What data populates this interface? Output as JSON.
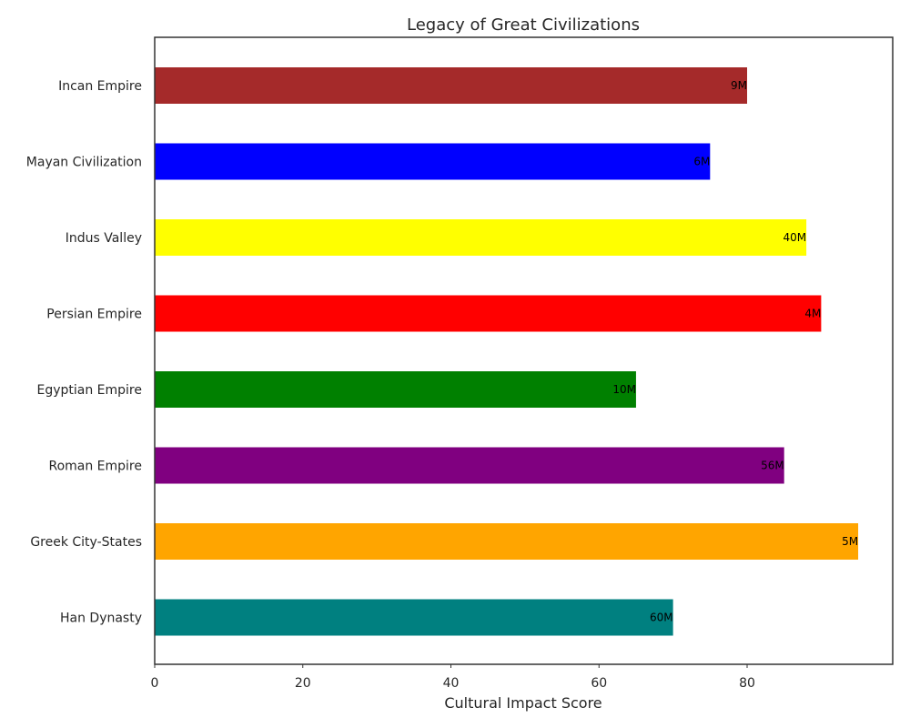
{
  "chart_data": {
    "type": "bar",
    "orientation": "horizontal",
    "title": "Legacy of Great Civilizations",
    "xlabel": "Cultural Impact Score",
    "ylabel": "",
    "xlim": [
      0,
      100
    ],
    "xticks": [
      0,
      20,
      40,
      60,
      80
    ],
    "grid": false,
    "categories": [
      "Incan Empire",
      "Mayan Civilization",
      "Indus Valley",
      "Persian Empire",
      "Egyptian Empire",
      "Roman Empire",
      "Greek City-States",
      "Han Dynasty"
    ],
    "values": [
      80,
      75,
      88,
      90,
      65,
      85,
      95,
      70
    ],
    "data_labels": [
      "9M",
      "6M",
      "40M",
      "4M",
      "10M",
      "56M",
      "5M",
      "60M"
    ],
    "colors": [
      "#a52a2a",
      "#0000ff",
      "#ffff00",
      "#ff0000",
      "#008000",
      "#800080",
      "#ffa500",
      "#008080"
    ]
  }
}
